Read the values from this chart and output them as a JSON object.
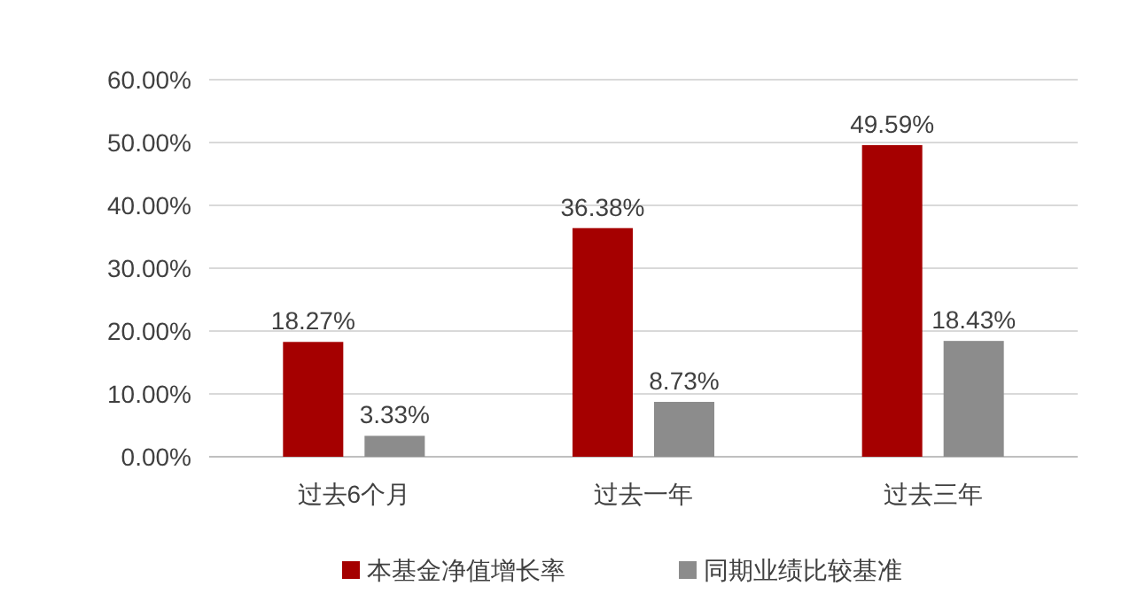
{
  "chart_data": {
    "type": "bar",
    "categories": [
      "过去6个月",
      "过去一年",
      "过去三年"
    ],
    "series": [
      {
        "name": "本基金净值增长率",
        "color": "#a50000",
        "values": [
          18.27,
          36.38,
          49.59
        ],
        "value_labels": [
          "18.27%",
          "36.38%",
          "49.59%"
        ]
      },
      {
        "name": "同期业绩比较基准",
        "color": "#8c8c8c",
        "values": [
          3.33,
          8.73,
          18.43
        ],
        "value_labels": [
          "3.33%",
          "8.73%",
          "18.43%"
        ]
      }
    ],
    "ylim": [
      0,
      60
    ],
    "yticks": [
      {
        "value": 0,
        "label": "0.00%"
      },
      {
        "value": 10,
        "label": "10.00%"
      },
      {
        "value": 20,
        "label": "20.00%"
      },
      {
        "value": 30,
        "label": "30.00%"
      },
      {
        "value": 40,
        "label": "40.00%"
      },
      {
        "value": 50,
        "label": "50.00%"
      },
      {
        "value": 60,
        "label": "60.00%"
      }
    ],
    "grid": "y",
    "legend": "bottom"
  }
}
